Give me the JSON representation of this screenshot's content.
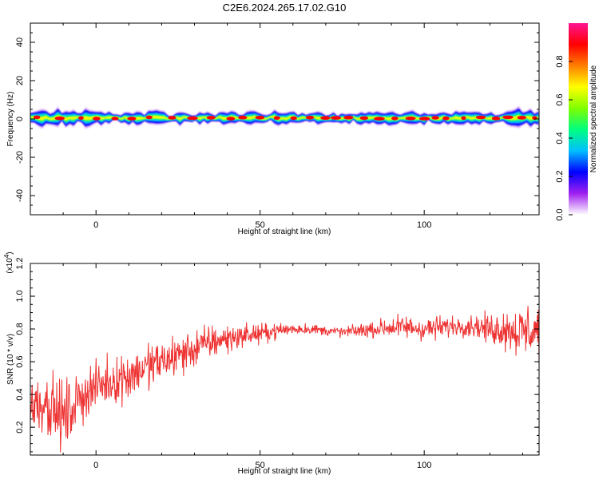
{
  "title": "C2E6.2024.265.17.02.G10",
  "chart_data": [
    {
      "type": "heatmap",
      "name": "spectrogram",
      "xlabel": "Height of straight line (km)",
      "ylabel": "Frequency (Hz)",
      "xlim": [
        -20,
        135
      ],
      "ylim": [
        -50,
        50
      ],
      "xticks": [
        0,
        50,
        100
      ],
      "yticks": [
        40,
        20,
        0,
        -20,
        -40
      ],
      "colorbar": {
        "label": "Normalized spectral amplitude",
        "range": [
          0,
          1
        ],
        "ticks": [
          "0.0",
          "0.2",
          "0.4",
          "0.6",
          "0.8"
        ],
        "colormap": [
          "#ffffff",
          "#a020f0",
          "#0000ff",
          "#00bfff",
          "#00ff7f",
          "#7fff00",
          "#ffff00",
          "#ff7f00",
          "#ff0000",
          "#ff1493"
        ]
      },
      "band": {
        "center_hz": 0.5,
        "halfwidth_hz": [
          1.5,
          6
        ],
        "dominant_frequency_hz": [
          -2,
          2
        ]
      }
    },
    {
      "type": "line",
      "name": "snr",
      "xlabel": "Height of straight line (km)",
      "ylabel": "SNR (10 * v/v)",
      "yexponent": "(x10",
      "yexponent_sup": "4",
      "xlim": [
        -20,
        135
      ],
      "ylim": [
        0.03,
        1.2
      ],
      "xticks": [
        0,
        50,
        100
      ],
      "yticks": [
        "0.2",
        "0.4",
        "0.6",
        "0.8",
        "1.0",
        "1.2"
      ],
      "color": "#ee3333",
      "trend": {
        "x": [
          -20,
          -15,
          -10,
          -5,
          0,
          5,
          10,
          15,
          20,
          25,
          30,
          35,
          40,
          45,
          50,
          55,
          60,
          65,
          70,
          75,
          80,
          85,
          90,
          95,
          100,
          105,
          110,
          115,
          120,
          125,
          130,
          135
        ],
        "y": [
          0.33,
          0.36,
          0.25,
          0.38,
          0.45,
          0.48,
          0.52,
          0.56,
          0.6,
          0.64,
          0.68,
          0.72,
          0.74,
          0.76,
          0.77,
          0.79,
          0.8,
          0.8,
          0.79,
          0.78,
          0.79,
          0.8,
          0.81,
          0.81,
          0.8,
          0.81,
          0.82,
          0.82,
          0.8,
          0.8,
          0.78,
          0.8
        ]
      },
      "spread": {
        "x": [
          -20,
          -10,
          0,
          10,
          20,
          30,
          40,
          50,
          60,
          70,
          80,
          90,
          100,
          110,
          120,
          130,
          135
        ],
        "y": [
          0.17,
          0.22,
          0.14,
          0.16,
          0.14,
          0.13,
          0.09,
          0.06,
          0.04,
          0.03,
          0.04,
          0.07,
          0.08,
          0.06,
          0.09,
          0.17,
          0.2
        ]
      },
      "samples": 1100
    }
  ]
}
